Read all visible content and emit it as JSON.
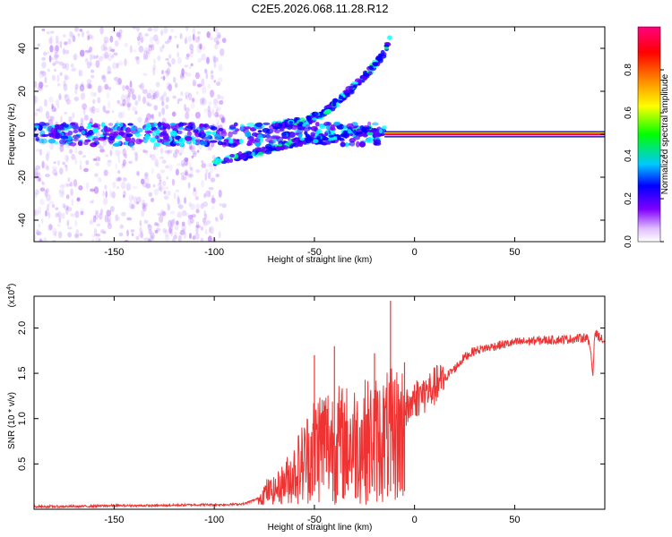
{
  "title": "C2E5.2026.068.11.28.R12",
  "chart_data": [
    {
      "type": "heatmap",
      "name": "spectrogram",
      "xlabel": "Height of straight line (km)",
      "ylabel": "Frequency (Hz)",
      "xlim": [
        -190,
        95
      ],
      "ylim": [
        -50,
        50
      ],
      "xticks": [
        -150,
        -100,
        -50,
        0,
        50
      ],
      "yticks": [
        -40,
        -20,
        0,
        20,
        40
      ],
      "colorbar": {
        "label": "Normalized spectral amplitude",
        "range": [
          0,
          1
        ],
        "ticks": [
          "0.0",
          "0.2",
          "0.4",
          "0.6",
          "0.8"
        ],
        "colors": [
          "#ffffff",
          "#d9b3ff",
          "#8000ff",
          "#0000ff",
          "#00ffff",
          "#00ff00",
          "#ffff00",
          "#ff8000",
          "#ff0000",
          "#ff0080"
        ]
      },
      "features": [
        {
          "name": "carrier",
          "x_range": [
            -190,
            95
          ],
          "freq_hz": 0,
          "note": "strong continuous line from about -15 km upward"
        },
        {
          "name": "lower branch",
          "points": [
            [
              -100,
              -13
            ],
            [
              -85,
              -10
            ],
            [
              -70,
              -6
            ],
            [
              -55,
              -3
            ],
            [
              -40,
              -2
            ],
            [
              -25,
              2
            ],
            [
              -15,
              1
            ]
          ]
        },
        {
          "name": "upper branch",
          "points": [
            [
              -70,
              4
            ],
            [
              -55,
              6
            ],
            [
              -45,
              10
            ],
            [
              -35,
              18
            ],
            [
              -27,
              25
            ],
            [
              -20,
              32
            ],
            [
              -15,
              38
            ],
            [
              -12,
              45
            ]
          ]
        }
      ]
    },
    {
      "type": "line",
      "name": "snr",
      "xlabel": "Height of straight line (km)",
      "ylabel": "SNR (10 * v/v)",
      "multiplier": "(x10",
      "exponent": "4",
      "xlim": [
        -190,
        95
      ],
      "ylim": [
        0,
        2.35
      ],
      "xticks": [
        -150,
        -100,
        -50,
        0,
        50
      ],
      "yticks": [
        "0.5",
        "1.0",
        "1.5",
        "2.0"
      ],
      "color": "#ee3333",
      "points": [
        [
          -190,
          0.03
        ],
        [
          -170,
          0.03
        ],
        [
          -150,
          0.04
        ],
        [
          -130,
          0.04
        ],
        [
          -110,
          0.05
        ],
        [
          -95,
          0.05
        ],
        [
          -85,
          0.06
        ],
        [
          -78,
          0.12
        ],
        [
          -74,
          0.22
        ],
        [
          -70,
          0.16
        ],
        [
          -65,
          0.25
        ],
        [
          -60,
          0.38
        ],
        [
          -55,
          0.55
        ],
        [
          -50,
          0.75
        ],
        [
          -45,
          0.85
        ],
        [
          -40,
          0.8
        ],
        [
          -35,
          0.78
        ],
        [
          -30,
          0.82
        ],
        [
          -25,
          0.85
        ],
        [
          -20,
          0.88
        ],
        [
          -15,
          0.92
        ],
        [
          -10,
          0.98
        ],
        [
          -7,
          1.05
        ],
        [
          -3,
          1.15
        ],
        [
          0,
          1.25
        ],
        [
          5,
          1.3
        ],
        [
          10,
          1.38
        ],
        [
          15,
          1.45
        ],
        [
          20,
          1.55
        ],
        [
          25,
          1.68
        ],
        [
          30,
          1.75
        ],
        [
          40,
          1.8
        ],
        [
          50,
          1.84
        ],
        [
          60,
          1.86
        ],
        [
          70,
          1.87
        ],
        [
          80,
          1.88
        ],
        [
          86,
          1.9
        ],
        [
          88,
          1.75
        ],
        [
          89,
          1.47
        ],
        [
          90,
          1.95
        ],
        [
          95,
          1.84
        ]
      ],
      "spikes": [
        [
          -12,
          2.3
        ],
        [
          -50,
          1.7
        ],
        [
          -40,
          1.8
        ],
        [
          -20,
          1.72
        ],
        [
          -5,
          1.62
        ]
      ]
    }
  ]
}
